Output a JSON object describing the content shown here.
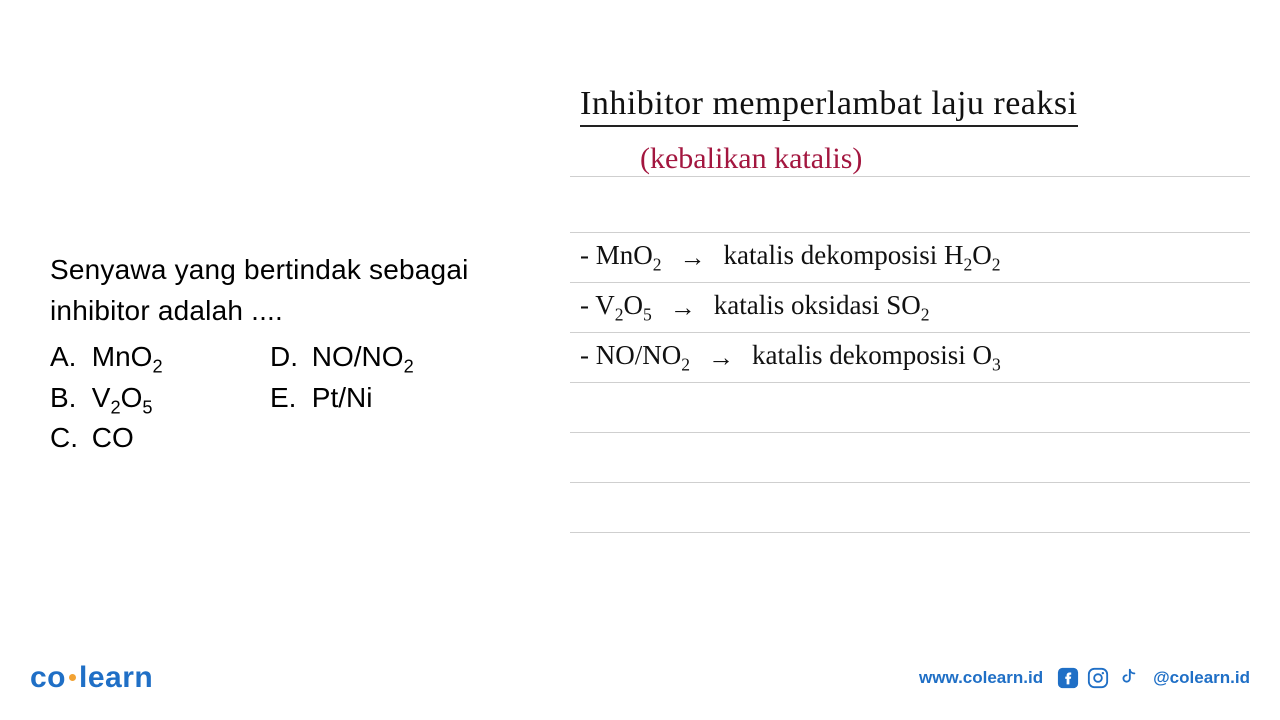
{
  "question": {
    "prompt": "Senyawa yang bertindak sebagai inhibitor adalah ....",
    "options": {
      "A": {
        "letter": "A.",
        "html": "MnO<sub>2</sub>"
      },
      "B": {
        "letter": "B.",
        "html": "V<sub>2</sub>O<sub>5</sub>"
      },
      "C": {
        "letter": "C.",
        "html": "CO"
      },
      "D": {
        "letter": "D.",
        "html": "NO/NO<sub>2</sub>"
      },
      "E": {
        "letter": "E.",
        "html": "Pt/Ni"
      }
    }
  },
  "notes": {
    "heading": "Inhibitor memperlambat laju reaksi",
    "subheading": "(kebalikan katalis)",
    "subheading_color": "#a3163f",
    "items": [
      {
        "lhs_html": "- MnO<sub>2</sub>",
        "rhs_html": "katalis dekomposisi  H<sub>2</sub>O<sub>2</sub>"
      },
      {
        "lhs_html": "- V<sub>2</sub>O<sub>5</sub>",
        "rhs_html": "katalis oksidasi  SO<sub>2</sub>"
      },
      {
        "lhs_html": "- NO/NO<sub>2</sub>",
        "rhs_html": "katalis dekomposisi  O<sub>3</sub>"
      }
    ],
    "arrow": "→",
    "rule_color": "#cfcfcf"
  },
  "footer": {
    "logo_left": "co",
    "logo_right": "learn",
    "url": "www.colearn.id",
    "handle": "@colearn.id",
    "brand_color": "#1f6fc6",
    "dot_color": "#f2a233"
  }
}
